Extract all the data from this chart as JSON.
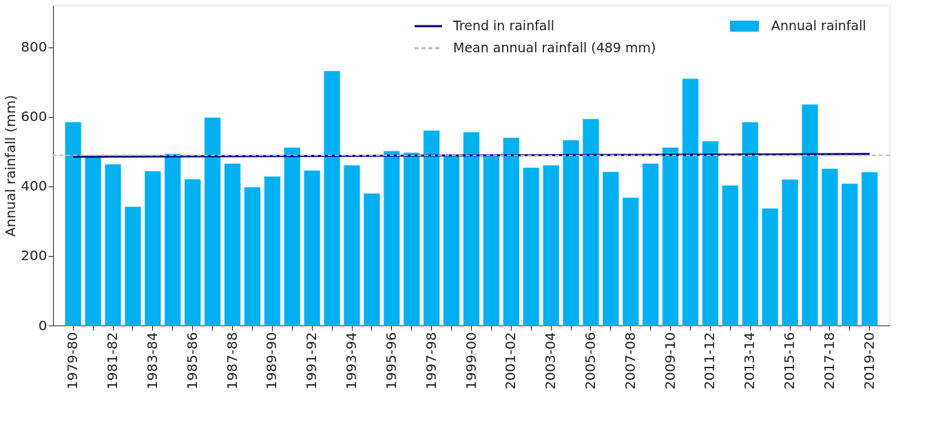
{
  "chart_data": {
    "type": "bar",
    "ylabel": "Annual rainfall (mm)",
    "categories": [
      "1979-80",
      null,
      "1981-82",
      null,
      "1983-84",
      null,
      "1985-86",
      null,
      "1987-88",
      null,
      "1989-90",
      null,
      "1991-92",
      null,
      "1993-94",
      null,
      "1995-96",
      null,
      "1997-98",
      null,
      "1999-00",
      null,
      "2001-02",
      null,
      "2003-04",
      null,
      "2005-06",
      null,
      "2007-08",
      null,
      "2009-10",
      null,
      "2011-12",
      null,
      "2013-14",
      null,
      "2015-16",
      null,
      "2017-18",
      null,
      "2019-20"
    ],
    "series": [
      {
        "name": "Annual rainfall",
        "color": "#00b0f0",
        "values": [
          585,
          485,
          464,
          342,
          444,
          494,
          421,
          598,
          466,
          398,
          429,
          512,
          446,
          732,
          461,
          380,
          502,
          497,
          561,
          487,
          556,
          487,
          540,
          454,
          461,
          533,
          594,
          442,
          368,
          466,
          512,
          710,
          530,
          403,
          585,
          337,
          420,
          636,
          451,
          408,
          441
        ]
      },
      {
        "name": "Trend in rainfall",
        "type": "line",
        "color": "#000080",
        "x": [
          "1979-80",
          "2019-20"
        ],
        "values": [
          485,
          493
        ]
      }
    ],
    "ref_lines": [
      {
        "axis": "y",
        "value": 489,
        "label": "Mean annual rainfall (489 mm)",
        "color": "#bbbbbb",
        "line_style": "dashed"
      }
    ],
    "ylim": [
      0,
      920
    ],
    "yticks": [
      0,
      200,
      400,
      600,
      800
    ],
    "grid": false,
    "legend": "top right"
  }
}
